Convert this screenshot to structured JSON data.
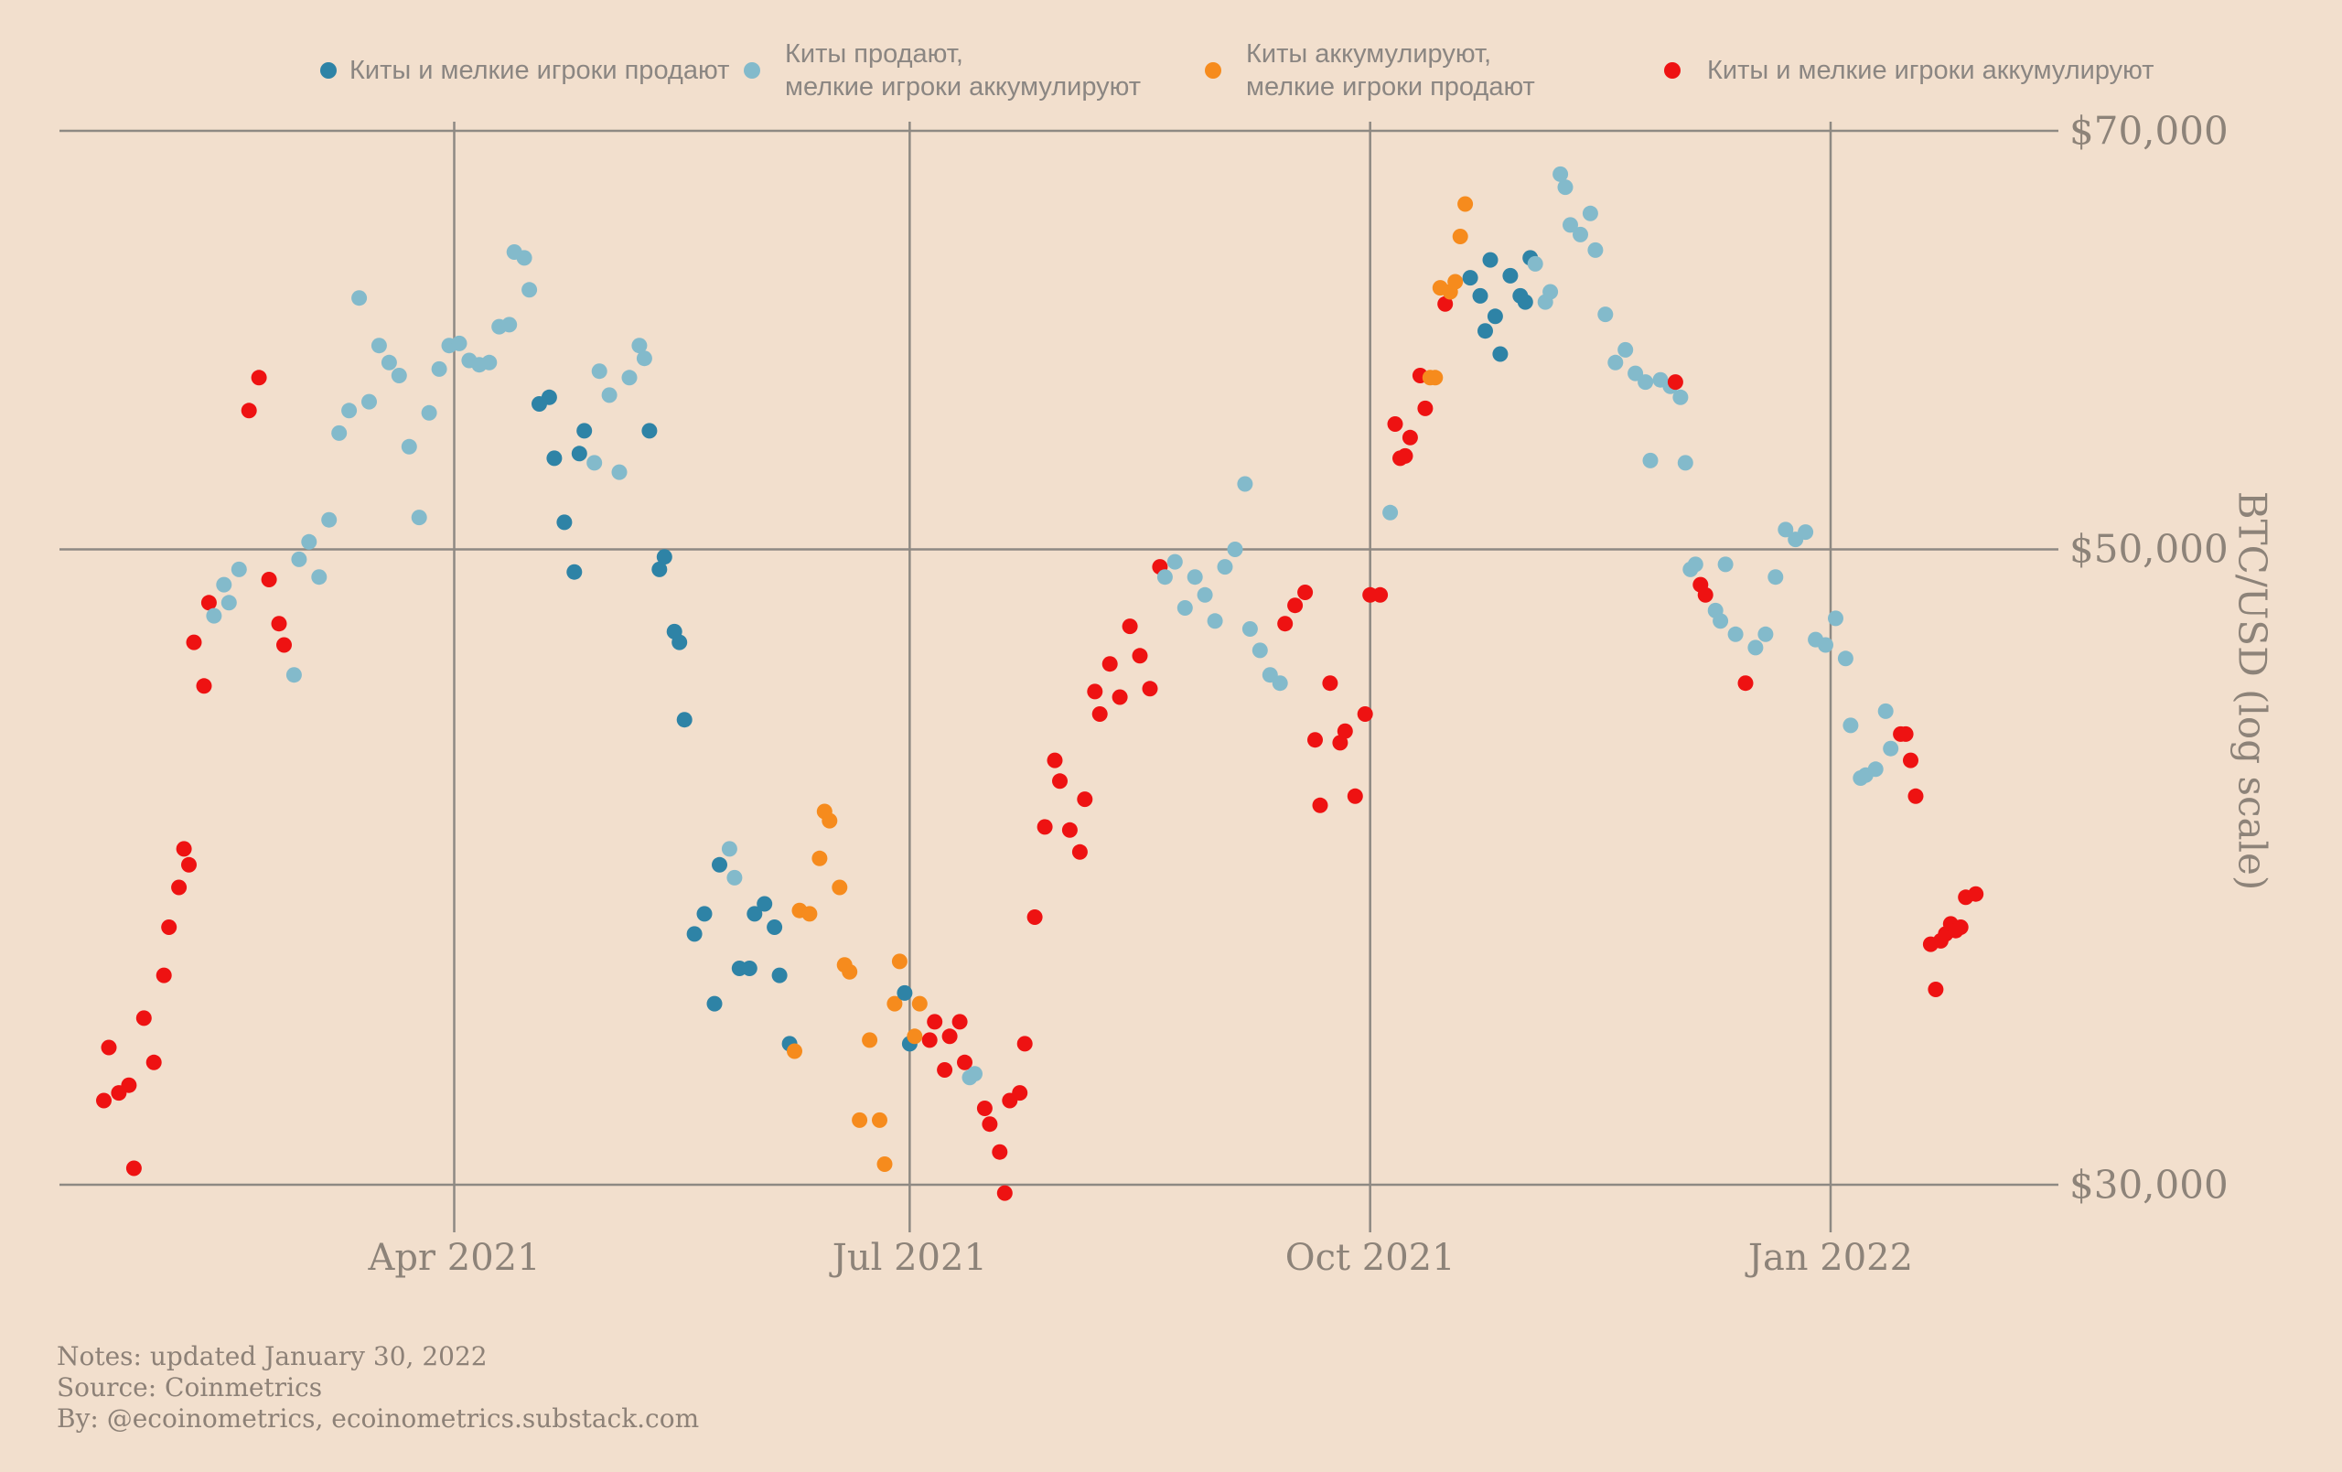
{
  "notes": {
    "line1": "Notes: updated January 30, 2022",
    "line2": "Source: Coinmetrics",
    "line3": "By: @ecoinometrics, ecoinometrics.substack.com"
  },
  "colors": {
    "background": "#f2dfcd",
    "gridline": "#8e8983",
    "axis_text": "#8d8379",
    "legend_text": "#8b8682"
  },
  "chart_data": {
    "type": "scatter",
    "title": "",
    "xlabel": "",
    "ylabel": "BTC/USD (log scale)",
    "y_axis": {
      "label": "BTC/USD (log scale)",
      "scale": "log",
      "unit": "USD",
      "ticks": [
        {
          "label": "$70,000",
          "value": 70000
        },
        {
          "label": "$50,000",
          "value": 50000
        },
        {
          "label": "$30,000",
          "value": 30000
        }
      ]
    },
    "x_axis": {
      "scale": "time",
      "range": [
        "2021-01-20",
        "2022-02-05"
      ],
      "ticks": [
        {
          "label": "Apr 2021",
          "date": "2021-04-01"
        },
        {
          "label": "Jul 2021",
          "date": "2021-07-01"
        },
        {
          "label": "Oct 2021",
          "date": "2021-10-01"
        },
        {
          "label": "Jan 2022",
          "date": "2022-01-01"
        }
      ]
    },
    "legend_position": "top",
    "series": [
      {
        "id": "both-sell",
        "label": "Киты и мелкие игроки продают",
        "color": "#2e83a6",
        "points": [
          [
            "2021-04-18",
            56.2
          ],
          [
            "2021-04-20",
            56.5
          ],
          [
            "2021-04-21",
            53.8
          ],
          [
            "2021-04-23",
            51.1
          ],
          [
            "2021-04-25",
            49.1
          ],
          [
            "2021-04-26",
            54.0
          ],
          [
            "2021-04-27",
            55.0
          ],
          [
            "2021-05-10",
            55.0
          ],
          [
            "2021-05-12",
            49.2
          ],
          [
            "2021-05-13",
            49.7
          ],
          [
            "2021-05-15",
            46.8
          ],
          [
            "2021-05-16",
            46.4
          ],
          [
            "2021-05-17",
            43.6
          ],
          [
            "2021-05-19",
            36.7
          ],
          [
            "2021-05-21",
            37.3
          ],
          [
            "2021-05-23",
            34.7
          ],
          [
            "2021-05-24",
            38.8
          ],
          [
            "2021-05-28",
            35.7
          ],
          [
            "2021-05-30",
            35.7
          ],
          [
            "2021-05-31",
            37.3
          ],
          [
            "2021-06-02",
            37.6
          ],
          [
            "2021-06-04",
            36.9
          ],
          [
            "2021-06-05",
            35.5
          ],
          [
            "2021-06-07",
            33.6
          ],
          [
            "2021-06-30",
            35.0
          ],
          [
            "2021-07-01",
            33.6
          ],
          [
            "2021-10-21",
            62.2
          ],
          [
            "2021-10-23",
            61.3
          ],
          [
            "2021-10-24",
            59.6
          ],
          [
            "2021-10-25",
            63.1
          ],
          [
            "2021-10-26",
            60.3
          ],
          [
            "2021-10-27",
            58.5
          ],
          [
            "2021-10-29",
            62.3
          ],
          [
            "2021-10-31",
            61.3
          ],
          [
            "2021-11-01",
            61.0
          ],
          [
            "2021-11-02",
            63.2
          ]
        ]
      },
      {
        "id": "whales-sell-small-accumulate",
        "label": "Киты продают,\nмелкие игроки аккумулируют",
        "color": "#83bacb",
        "points": [
          [
            "2021-02-12",
            47.4
          ],
          [
            "2021-02-14",
            48.6
          ],
          [
            "2021-02-15",
            47.9
          ],
          [
            "2021-02-17",
            49.2
          ],
          [
            "2021-02-28",
            45.2
          ],
          [
            "2021-03-01",
            49.6
          ],
          [
            "2021-03-03",
            50.3
          ],
          [
            "2021-03-05",
            48.9
          ],
          [
            "2021-03-07",
            51.2
          ],
          [
            "2021-03-09",
            54.9
          ],
          [
            "2021-03-11",
            55.9
          ],
          [
            "2021-03-13",
            61.2
          ],
          [
            "2021-03-15",
            56.3
          ],
          [
            "2021-03-17",
            58.9
          ],
          [
            "2021-03-19",
            58.1
          ],
          [
            "2021-03-21",
            57.5
          ],
          [
            "2021-03-23",
            54.3
          ],
          [
            "2021-03-25",
            51.3
          ],
          [
            "2021-03-27",
            55.8
          ],
          [
            "2021-03-29",
            57.8
          ],
          [
            "2021-03-31",
            58.9
          ],
          [
            "2021-04-02",
            59.0
          ],
          [
            "2021-04-04",
            58.2
          ],
          [
            "2021-04-06",
            58.0
          ],
          [
            "2021-04-08",
            58.1
          ],
          [
            "2021-04-10",
            59.8
          ],
          [
            "2021-04-12",
            59.9
          ],
          [
            "2021-04-13",
            63.5
          ],
          [
            "2021-04-15",
            63.2
          ],
          [
            "2021-04-16",
            61.6
          ],
          [
            "2021-04-29",
            53.6
          ],
          [
            "2021-04-30",
            57.7
          ],
          [
            "2021-05-02",
            56.6
          ],
          [
            "2021-05-04",
            53.2
          ],
          [
            "2021-05-06",
            57.4
          ],
          [
            "2021-05-08",
            58.9
          ],
          [
            "2021-05-09",
            58.3
          ],
          [
            "2021-05-26",
            39.3
          ],
          [
            "2021-05-27",
            38.4
          ],
          [
            "2021-07-13",
            32.7
          ],
          [
            "2021-07-14",
            32.8
          ],
          [
            "2021-08-21",
            48.9
          ],
          [
            "2021-08-23",
            49.5
          ],
          [
            "2021-08-25",
            47.7
          ],
          [
            "2021-08-27",
            48.9
          ],
          [
            "2021-08-29",
            48.2
          ],
          [
            "2021-08-31",
            47.2
          ],
          [
            "2021-09-02",
            49.3
          ],
          [
            "2021-09-04",
            50.0
          ],
          [
            "2021-09-06",
            52.7
          ],
          [
            "2021-09-07",
            46.9
          ],
          [
            "2021-09-09",
            46.1
          ],
          [
            "2021-09-11",
            45.2
          ],
          [
            "2021-09-13",
            44.9
          ],
          [
            "2021-10-05",
            51.5
          ],
          [
            "2021-11-03",
            62.9
          ],
          [
            "2021-11-05",
            61.0
          ],
          [
            "2021-11-06",
            61.5
          ],
          [
            "2021-11-08",
            67.6
          ],
          [
            "2021-11-09",
            66.9
          ],
          [
            "2021-11-10",
            64.9
          ],
          [
            "2021-11-12",
            64.4
          ],
          [
            "2021-11-14",
            65.5
          ],
          [
            "2021-11-15",
            63.6
          ],
          [
            "2021-11-17",
            60.4
          ],
          [
            "2021-11-19",
            58.1
          ],
          [
            "2021-11-21",
            58.7
          ],
          [
            "2021-11-23",
            57.6
          ],
          [
            "2021-11-25",
            57.2
          ],
          [
            "2021-11-26",
            53.7
          ],
          [
            "2021-11-28",
            57.3
          ],
          [
            "2021-11-30",
            57.0
          ],
          [
            "2021-12-02",
            56.5
          ],
          [
            "2021-12-03",
            53.6
          ],
          [
            "2021-12-04",
            49.2
          ],
          [
            "2021-12-05",
            49.4
          ],
          [
            "2021-12-09",
            47.6
          ],
          [
            "2021-12-10",
            47.2
          ],
          [
            "2021-12-11",
            49.4
          ],
          [
            "2021-12-13",
            46.7
          ],
          [
            "2021-12-17",
            46.2
          ],
          [
            "2021-12-19",
            46.7
          ],
          [
            "2021-12-21",
            48.9
          ],
          [
            "2021-12-23",
            50.8
          ],
          [
            "2021-12-25",
            50.4
          ],
          [
            "2021-12-27",
            50.7
          ],
          [
            "2021-12-29",
            46.5
          ],
          [
            "2021-12-31",
            46.3
          ],
          [
            "2022-01-02",
            47.3
          ],
          [
            "2022-01-04",
            45.8
          ],
          [
            "2022-01-05",
            43.4
          ],
          [
            "2022-01-07",
            41.6
          ],
          [
            "2022-01-08",
            41.7
          ],
          [
            "2022-01-10",
            41.9
          ],
          [
            "2022-01-12",
            43.9
          ],
          [
            "2022-01-13",
            42.6
          ]
        ]
      },
      {
        "id": "whales-accumulate-small-sell",
        "label": "Киты аккумулируют,\nмелкие игроки продают",
        "color": "#f68b1d",
        "points": [
          [
            "2021-06-08",
            33.4
          ],
          [
            "2021-06-09",
            37.4
          ],
          [
            "2021-06-11",
            37.3
          ],
          [
            "2021-06-13",
            39.0
          ],
          [
            "2021-06-14",
            40.5
          ],
          [
            "2021-06-15",
            40.2
          ],
          [
            "2021-06-17",
            38.1
          ],
          [
            "2021-06-18",
            35.8
          ],
          [
            "2021-06-19",
            35.6
          ],
          [
            "2021-06-21",
            31.6
          ],
          [
            "2021-06-23",
            33.7
          ],
          [
            "2021-06-25",
            31.6
          ],
          [
            "2021-06-26",
            30.5
          ],
          [
            "2021-06-28",
            34.7
          ],
          [
            "2021-06-29",
            35.9
          ],
          [
            "2021-07-02",
            33.8
          ],
          [
            "2021-07-03",
            34.7
          ],
          [
            "2021-10-13",
            57.4
          ],
          [
            "2021-10-14",
            57.4
          ],
          [
            "2021-10-15",
            61.7
          ],
          [
            "2021-10-17",
            61.5
          ],
          [
            "2021-10-18",
            62.0
          ],
          [
            "2021-10-19",
            64.3
          ],
          [
            "2021-10-20",
            66.0
          ]
        ]
      },
      {
        "id": "both-accumulate",
        "label": "Киты и мелкие игроки аккумулируют",
        "color": "#ee1212",
        "points": [
          [
            "2021-01-21",
            32.1
          ],
          [
            "2021-01-22",
            33.5
          ],
          [
            "2021-01-24",
            32.3
          ],
          [
            "2021-01-26",
            32.5
          ],
          [
            "2021-01-27",
            30.4
          ],
          [
            "2021-01-29",
            34.3
          ],
          [
            "2021-01-31",
            33.1
          ],
          [
            "2021-02-02",
            35.5
          ],
          [
            "2021-02-03",
            36.9
          ],
          [
            "2021-02-05",
            38.1
          ],
          [
            "2021-02-06",
            39.3
          ],
          [
            "2021-02-07",
            38.8
          ],
          [
            "2021-02-08",
            46.4
          ],
          [
            "2021-02-10",
            44.8
          ],
          [
            "2021-02-11",
            47.9
          ],
          [
            "2021-02-19",
            55.9
          ],
          [
            "2021-02-21",
            57.4
          ],
          [
            "2021-02-23",
            48.8
          ],
          [
            "2021-02-25",
            47.1
          ],
          [
            "2021-02-26",
            46.3
          ],
          [
            "2021-07-05",
            33.7
          ],
          [
            "2021-07-06",
            34.2
          ],
          [
            "2021-07-08",
            32.9
          ],
          [
            "2021-07-09",
            33.8
          ],
          [
            "2021-07-11",
            34.2
          ],
          [
            "2021-07-12",
            33.1
          ],
          [
            "2021-07-16",
            31.9
          ],
          [
            "2021-07-17",
            31.5
          ],
          [
            "2021-07-19",
            30.8
          ],
          [
            "2021-07-20",
            29.8
          ],
          [
            "2021-07-21",
            32.1
          ],
          [
            "2021-07-23",
            32.3
          ],
          [
            "2021-07-24",
            33.6
          ],
          [
            "2021-07-26",
            37.2
          ],
          [
            "2021-07-28",
            40.0
          ],
          [
            "2021-07-30",
            42.2
          ],
          [
            "2021-07-31",
            41.5
          ],
          [
            "2021-08-02",
            39.9
          ],
          [
            "2021-08-04",
            39.2
          ],
          [
            "2021-08-05",
            40.9
          ],
          [
            "2021-08-07",
            44.6
          ],
          [
            "2021-08-08",
            43.8
          ],
          [
            "2021-08-10",
            45.6
          ],
          [
            "2021-08-12",
            44.4
          ],
          [
            "2021-08-14",
            47.0
          ],
          [
            "2021-08-16",
            45.9
          ],
          [
            "2021-08-18",
            44.7
          ],
          [
            "2021-08-20",
            49.3
          ],
          [
            "2021-09-14",
            47.1
          ],
          [
            "2021-09-16",
            47.8
          ],
          [
            "2021-09-18",
            48.3
          ],
          [
            "2021-09-20",
            42.9
          ],
          [
            "2021-09-21",
            40.7
          ],
          [
            "2021-09-23",
            44.9
          ],
          [
            "2021-09-25",
            42.8
          ],
          [
            "2021-09-26",
            43.2
          ],
          [
            "2021-09-28",
            41.0
          ],
          [
            "2021-09-30",
            43.8
          ],
          [
            "2021-10-01",
            48.2
          ],
          [
            "2021-10-03",
            48.2
          ],
          [
            "2021-10-06",
            55.3
          ],
          [
            "2021-10-07",
            53.8
          ],
          [
            "2021-10-08",
            53.9
          ],
          [
            "2021-10-09",
            54.7
          ],
          [
            "2021-10-11",
            57.5
          ],
          [
            "2021-10-12",
            56.0
          ],
          [
            "2021-10-16",
            60.9
          ],
          [
            "2021-12-01",
            57.2
          ],
          [
            "2021-12-06",
            48.6
          ],
          [
            "2021-12-07",
            48.2
          ],
          [
            "2021-12-15",
            44.9
          ],
          [
            "2022-01-15",
            43.1
          ],
          [
            "2022-01-16",
            43.1
          ],
          [
            "2022-01-17",
            42.2
          ],
          [
            "2022-01-18",
            41.0
          ],
          [
            "2022-01-21",
            36.4
          ],
          [
            "2022-01-22",
            35.1
          ],
          [
            "2022-01-23",
            36.5
          ],
          [
            "2022-01-24",
            36.7
          ],
          [
            "2022-01-25",
            37.0
          ],
          [
            "2022-01-26",
            36.8
          ],
          [
            "2022-01-27",
            36.9
          ],
          [
            "2022-01-28",
            37.8
          ],
          [
            "2022-01-30",
            37.9
          ]
        ]
      }
    ]
  }
}
